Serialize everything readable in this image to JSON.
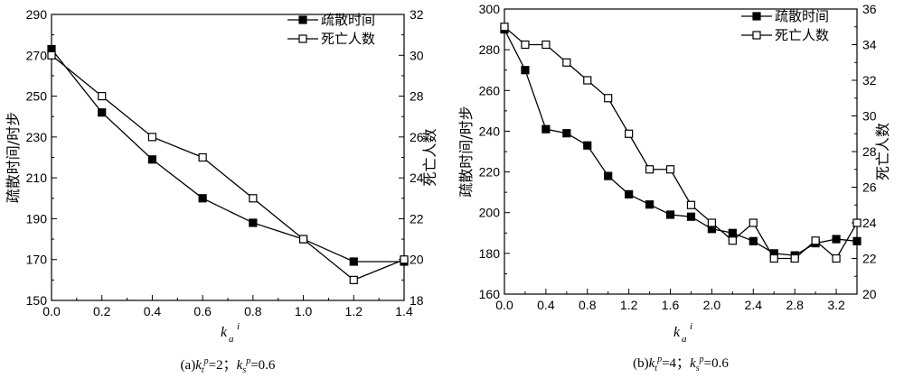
{
  "chart_data": [
    {
      "type": "line",
      "caption": {
        "prefix": "(a)",
        "k1": "k",
        "k1_sub": "t",
        "k1_sup": "p",
        "k1_val": "=2",
        "sep": "；",
        "k2": "k",
        "k2_sub": "s",
        "k2_sup": "p",
        "k2_val": "=0.6"
      },
      "xlabel": {
        "main": "k",
        "sub": "a",
        "sup": "i"
      },
      "ylabel_left": "疏散时间/时步",
      "ylabel_right": "死亡人数",
      "xlim": [
        0,
        1.4
      ],
      "ylim_left": [
        150,
        290
      ],
      "ylim_right": [
        18,
        32
      ],
      "xticks": [
        "0.0",
        "0.2",
        "0.4",
        "0.6",
        "0.8",
        "1.0",
        "1.2",
        "1.4"
      ],
      "yticks_left": [
        "150",
        "170",
        "190",
        "210",
        "230",
        "250",
        "270",
        "290"
      ],
      "yticks_right": [
        "18",
        "20",
        "22",
        "24",
        "26",
        "28",
        "30",
        "32"
      ],
      "legend_position": "top-right",
      "series": [
        {
          "name": "疏散时间",
          "axis": "left",
          "marker": "filled-square",
          "x": [
            0.0,
            0.2,
            0.4,
            0.6,
            0.8,
            1.0,
            1.2,
            1.4
          ],
          "y": [
            273,
            242,
            219,
            200,
            188,
            180,
            169,
            169
          ]
        },
        {
          "name": "死亡人数",
          "axis": "right",
          "marker": "open-square",
          "x": [
            0.0,
            0.2,
            0.4,
            0.6,
            0.8,
            1.0,
            1.2,
            1.4
          ],
          "y": [
            30,
            28,
            26,
            25,
            23,
            21,
            19,
            20
          ]
        }
      ]
    },
    {
      "type": "line",
      "caption": {
        "prefix": "(b)",
        "k1": "k",
        "k1_sub": "t",
        "k1_sup": "p",
        "k1_val": "=4",
        "sep": "；",
        "k2": "k",
        "k2_sub": "s",
        "k2_sup": "p",
        "k2_val": "=0.6"
      },
      "xlabel": {
        "main": "k",
        "sub": "a",
        "sup": "i"
      },
      "ylabel_left": "疏散时间/时步",
      "ylabel_right": "死亡人数",
      "xlim": [
        0,
        3.4
      ],
      "ylim_left": [
        160,
        300
      ],
      "ylim_right": [
        20,
        36
      ],
      "xticks": [
        "0.0",
        "0.4",
        "0.8",
        "1.2",
        "1.6",
        "2.0",
        "2.4",
        "2.8",
        "3.2"
      ],
      "yticks_left": [
        "160",
        "180",
        "200",
        "220",
        "240",
        "260",
        "280",
        "300"
      ],
      "yticks_right": [
        "20",
        "22",
        "24",
        "26",
        "28",
        "30",
        "32",
        "34",
        "36"
      ],
      "legend_position": "top-right",
      "series": [
        {
          "name": "疏散时间",
          "axis": "left",
          "marker": "filled-square",
          "x": [
            0.0,
            0.2,
            0.4,
            0.6,
            0.8,
            1.0,
            1.2,
            1.4,
            1.6,
            1.8,
            2.0,
            2.2,
            2.4,
            2.6,
            2.8,
            3.0,
            3.2,
            3.4
          ],
          "y": [
            290,
            270,
            241,
            239,
            233,
            218,
            209,
            204,
            199,
            198,
            192,
            190,
            186,
            180,
            179,
            185,
            187,
            186
          ]
        },
        {
          "name": "死亡人数",
          "axis": "right",
          "marker": "open-square",
          "x": [
            0.0,
            0.2,
            0.4,
            0.6,
            0.8,
            1.0,
            1.2,
            1.4,
            1.6,
            1.8,
            2.0,
            2.2,
            2.4,
            2.6,
            2.8,
            3.0,
            3.2,
            3.4
          ],
          "y": [
            35,
            34,
            34,
            33,
            32,
            31,
            29,
            27,
            27,
            25,
            24,
            23,
            24,
            22,
            22,
            23,
            22,
            24
          ]
        }
      ]
    }
  ]
}
